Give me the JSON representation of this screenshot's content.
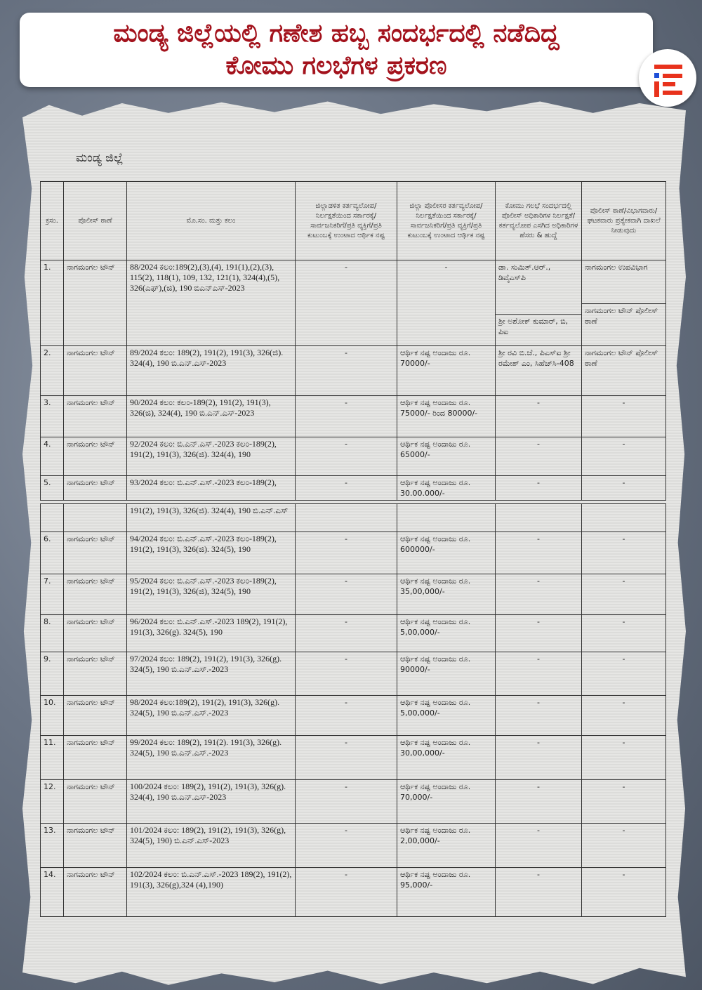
{
  "title": {
    "line1": "ಮಂಡ್ಯ ಜಿಲ್ಲೆಯಲ್ಲಿ ಗಣೇಶ ಹಬ್ಬ ಸಂದರ್ಭದಲ್ಲಿ ನಡೆದಿದ್ದ",
    "line2": "ಕೋಮು ಗಲಭೆಗಳ ಪ್ರಕರಣ"
  },
  "logo": {
    "icon": "brand-e-logo-icon",
    "colors": {
      "bars": "#e8321c",
      "dot": "#1e4fd8"
    }
  },
  "accent_color": "#a3121c",
  "document": {
    "heading": "ಮಂಡ್ಯ ಜಿಲ್ಲೆ",
    "columns": [
      "ಕ್ರಸಂ.",
      "ಪೊಲೀಸ್ ಠಾಣೆ",
      "ಮೊ.ಸಂ. ಮತ್ತು ಕಲಂ",
      "ಜಿಲ್ಲಾಡಳಿತ ಕರ್ತವ್ಯಲೋಪ/ ನಿರ್ಲಕ್ಷತೆಯಿಂದ ಸರ್ಕಾರಕ್ಕೆ/ಸಾರ್ವಜನಿಕರಿಗೆ/ಪ್ರತಿ ವ್ಯಕ್ತಿಗೆ/ಪ್ರತಿ ಕುಟುಂಬಕ್ಕೆ ಉಂಟಾದ ಆರ್ಥಿಕ ನಷ್ಟ",
      "ಜಿಲ್ಲಾ ಪೊಲೀಸರ ಕರ್ತವ್ಯಲೋಪ/ ನಿರ್ಲಕ್ಷತೆಯಿಂದ ಸರ್ಕಾರಕ್ಕೆ/ಸಾರ್ವಜನಿಕರಿಗೆ/ಪ್ರತಿ ವ್ಯಕ್ತಿಗೆ/ಪ್ರತಿ ಕುಟುಂಬಕ್ಕೆ ಉಂಟಾದ ಆರ್ಥಿಕ ನಷ್ಟ",
      "ಕೋಮು ಗಲಭೆ ಸಂದರ್ಭದಲ್ಲಿ ಪೊಲೀಸ್ ಅಧಿಕಾರಿಗಳ ನಿರ್ಲಕ್ಷತೆ/ ಕರ್ತವ್ಯಲೋಪ ಎಸಗಿದ ಅಧಿಕಾರಿಗಳ ಹೆಸರು & ಹುದ್ದೆ",
      "ಪೊಲೀಸ್ ಠಾಣೆ/ವಿಭಾಗವಾರು/ ಘಟಕವಾರು ಪ್ರತ್ಯೇಕವಾಗಿ ದಾಖಲೆ ನೀಡುವುದು"
    ],
    "rows_page1": [
      {
        "no": "1.",
        "station": "ನಾಗಮಂಗಲ ಟೌನ್",
        "case": "88/2024 ಕಲಂ:189(2),(3),(4), 191(1),(2),(3), 115(2), 118(1), 109, 132, 121(1), 324(4),(5), 326(ಎಫ್),(ಜಿ), 190 ಬಿಎನ್ಎಸ್-2023",
        "admin_loss": "-",
        "police_loss": "-",
        "officers": [
          "ಡಾ. ಸುಮಿತ್.ಆರ್., ಡಿವೈಎಸ್‌ಪಿ",
          "ಶ್ರೀ ಅಶೋಕ್ ಕುಮಾರ್, ಬಿ, ಪಿಐ"
        ],
        "unit": [
          "ನಾಗಮಂಗಲ ಉಪವಿಭಾಗ",
          "ನಾಗಮಂಗಲ ಟೌನ್ ಪೊಲೀಸ್ ಠಾಣೆ"
        ]
      },
      {
        "no": "2.",
        "station": "ನಾಗಮಂಗಲ ಟೌನ್",
        "case": "89/2024 ಕಲಂ: 189(2), 191(2), 191(3), 326(ಜಿ). 324(4), 190 ಬಿ.ಎನ್.ಎಸ್-2023",
        "admin_loss": "-",
        "police_loss": "ಆರ್ಥಿಕ ನಷ್ಟ ಅಂದಾಜು ರೂ. 70000/-",
        "officers": [
          "ಶ್ರೀ ರವಿ ಬಿ.ಜೆ., ಪಿಎಸ್‌ಐ ಶ್ರೀ ರಮೇಶ್ ಎಂ, ಸಿಹೆಚ್‌ಸಿ-408"
        ],
        "unit": [
          "ನಾಗಮಂಗಲ ಟೌನ್ ಪೊಲೀಸ್ ಠಾಣೆ"
        ]
      },
      {
        "no": "3.",
        "station": "ನಾಗಮಂಗಲ ಟೌನ್",
        "case": "90/2024 ಕಲಂ: ಕಲಂ-189(2), 191(2), 191(3), 326(ಜಿ), 324(4), 190 ಬಿ.ಎನ್.ಎಸ್-2023",
        "admin_loss": "-",
        "police_loss": "ಆರ್ಥಿಕ ನಷ್ಟ ಅಂದಾಜು ರೂ. 75000/- ರಿಂದ 80000/-",
        "officers": [
          "-"
        ],
        "unit": [
          "-"
        ]
      },
      {
        "no": "4.",
        "station": "ನಾಗಮಂಗಲ ಟೌನ್",
        "case": "92/2024 ಕಲಂ: ಬಿ.ಎನ್.ಎಸ್.-2023 ಕಲಂ-189(2), 191(2), 191(3), 326(ಜಿ). 324(4), 190",
        "admin_loss": "-",
        "police_loss": "ಆರ್ಥಿಕ ನಷ್ಟ ಅಂದಾಜು ರೂ. 65000/-",
        "officers": [
          "-"
        ],
        "unit": [
          "-"
        ]
      },
      {
        "no": "5.",
        "station": "ನಾಗಮಂಗಲ ಟೌನ್",
        "case": "93/2024 ಕಲಂ: ಬಿ.ಎನ್.ಎಸ್.-2023 ಕಲಂ-189(2),",
        "admin_loss": "-",
        "police_loss": "ಆರ್ಥಿಕ ನಷ್ಟ ಅಂದಾಜು ರೂ. 30.00.000/-",
        "officers": [
          "-"
        ],
        "unit": [
          "-"
        ]
      }
    ],
    "rows_page2": [
      {
        "no": "",
        "station": "",
        "case": "191(2), 191(3), 326(ಜಿ). 324(4), 190 ಬಿ.ಎನ್.ಎಸ್",
        "admin_loss": "",
        "police_loss": "",
        "officers": [
          ""
        ],
        "unit": [
          ""
        ]
      },
      {
        "no": "6.",
        "station": "ನಾಗಮಂಗಲ ಟೌನ್",
        "case": "94/2024 ಕಲಂ: ಬಿ.ಎನ್.ಎಸ್.-2023 ಕಲಂ-189(2), 191(2), 191(3), 326(ಜಿ). 324(5), 190",
        "admin_loss": "-",
        "police_loss": "ಆರ್ಥಿಕ ನಷ್ಟ ಅಂದಾಜು ರೂ. 600000/-",
        "officers": [
          "-"
        ],
        "unit": [
          "-"
        ]
      },
      {
        "no": "7.",
        "station": "ನಾಗಮಂಗಲ ಟೌನ್",
        "case": "95/2024 ಕಲಂ: ಬಿ.ಎನ್.ಎಸ್.-2023 ಕಲಂ-189(2), 191(2), 191(3), 326(ಜಿ), 324(5), 190",
        "admin_loss": "-",
        "police_loss": "ಆರ್ಥಿಕ ನಷ್ಟ ಅಂದಾಜು ರೂ. 35,00,000/-",
        "officers": [
          "-"
        ],
        "unit": [
          "-"
        ]
      },
      {
        "no": "8.",
        "station": "ನಾಗಮಂಗಲ ಟೌನ್",
        "case": "96/2024 ಕಲಂ: ಬಿ.ಎನ್.ಎಸ್.-2023 189(2), 191(2), 191(3), 326(g). 324(5), 190",
        "admin_loss": "-",
        "police_loss": "ಆರ್ಥಿಕ ನಷ್ಟ ಅಂದಾಜು ರೂ. 5,00,000/-",
        "officers": [
          "-"
        ],
        "unit": [
          "-"
        ]
      },
      {
        "no": "9.",
        "station": "ನಾಗಮಂಗಲ ಟೌನ್",
        "case": "97/2024 ಕಲಂ: 189(2), 191(2), 191(3), 326(g). 324(5), 190 ಬಿ.ಎನ್.ಎಸ್.-2023",
        "admin_loss": "-",
        "police_loss": "ಆರ್ಥಿಕ ನಷ್ಟ ಅಂದಾಜು ರೂ. 90000/-",
        "officers": [
          "-"
        ],
        "unit": [
          "-"
        ]
      },
      {
        "no": "10.",
        "station": "ನಾಗಮಂಗಲ ಟೌನ್",
        "case": "98/2024 ಕಲಂ:189(2), 191(2), 191(3), 326(g). 324(5), 190 ಬಿ.ಎನ್.ಎಸ್.-2023",
        "admin_loss": "-",
        "police_loss": "ಆರ್ಥಿಕ ನಷ್ಟ ಅಂದಾಜು ರೂ. 5,00,000/-",
        "officers": [
          "-"
        ],
        "unit": [
          "-"
        ]
      },
      {
        "no": "11.",
        "station": "ನಾಗಮಂಗಲ ಟೌನ್",
        "case": "99/2024 ಕಲಂ: 189(2), 191(2). 191(3), 326(g). 324(5), 190 ಬಿ.ಎನ್.ಎಸ್.-2023",
        "admin_loss": "-",
        "police_loss": "ಆರ್ಥಿಕ ನಷ್ಟ ಅಂದಾಜು ರೂ. 30,00,000/-",
        "officers": [
          "-"
        ],
        "unit": [
          "-"
        ]
      },
      {
        "no": "12.",
        "station": "ನಾಗಮಂಗಲ ಟೌನ್",
        "case": "100/2024 ಕಲಂ: 189(2), 191(2), 191(3), 326(g). 324(4), 190 ಬಿ.ಎನ್.ಎಸ್-2023",
        "admin_loss": "-",
        "police_loss": "ಆರ್ಥಿಕ ನಷ್ಟ ಅಂದಾಜು ರೂ. 70,000/-",
        "officers": [
          "-"
        ],
        "unit": [
          "-"
        ]
      },
      {
        "no": "13.",
        "station": "ನಾಗಮಂಗಲ ಟೌನ್",
        "case": "101/2024 ಕಲಂ: 189(2), 191(2), 191(3), 326(g), 324(5), 190) ಬಿ.ಎನ್.ಎಸ್-2023",
        "admin_loss": "-",
        "police_loss": "ಆರ್ಥಿಕ ನಷ್ಟ ಅಂದಾಜು ರೂ. 2,00,000/-",
        "officers": [
          "-"
        ],
        "unit": [
          "-"
        ]
      },
      {
        "no": "14.",
        "station": "ನಾಗಮಂಗಲ ಟೌನ್",
        "case": "102/2024 ಕಲಂ: ಬಿ.ಎನ್.ಎಸ್.-2023 189(2), 191(2), 191(3), 326(g),324 (4),190)",
        "admin_loss": "-",
        "police_loss": "ಆರ್ಥಿಕ ನಷ್ಟ ಅಂದಾಜು ರೂ. 95,000/-",
        "officers": [
          "-"
        ],
        "unit": [
          "-"
        ]
      }
    ]
  }
}
